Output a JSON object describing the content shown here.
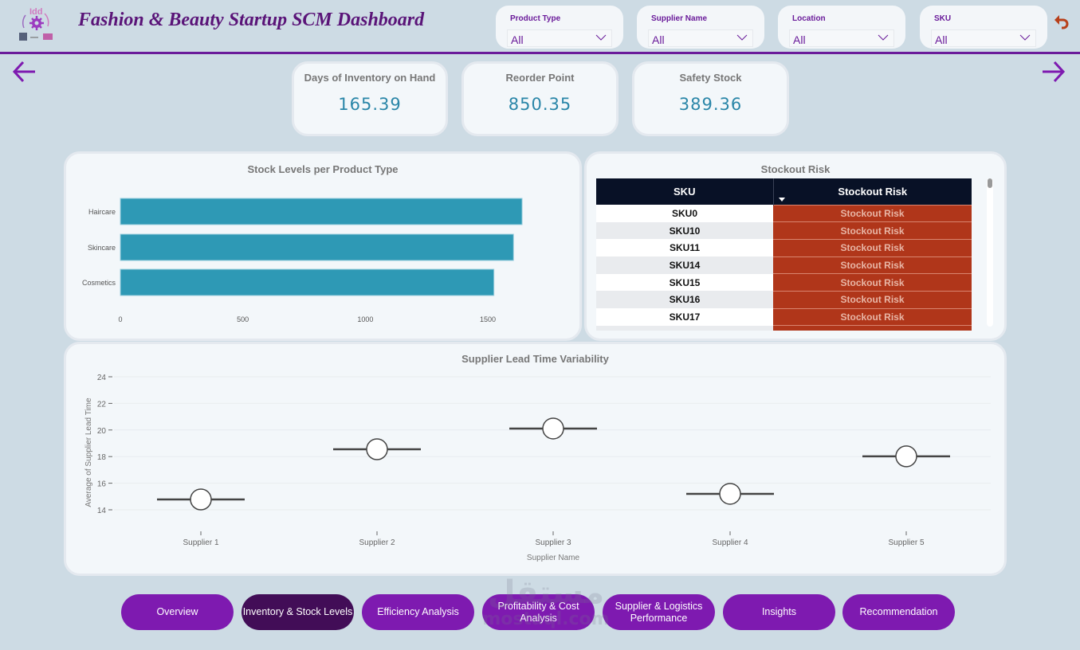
{
  "header": {
    "title": "Fashion & Beauty Startup SCM Dashboard",
    "logo_icon": "supply-chain-logo-icon",
    "reset_icon": "undo-icon",
    "back_icon": "arrow-left-icon",
    "forward_icon": "arrow-right-icon"
  },
  "filters": [
    {
      "label": "Product Type",
      "value": "All"
    },
    {
      "label": "Supplier Name",
      "value": "All"
    },
    {
      "label": "Location",
      "value": "All"
    },
    {
      "label": "SKU",
      "value": "All"
    }
  ],
  "kpis": [
    {
      "title": "Days of Inventory on Hand",
      "value": "165.39"
    },
    {
      "title": "Reorder Point",
      "value": "850.35"
    },
    {
      "title": "Safety Stock",
      "value": "389.36"
    }
  ],
  "stockout": {
    "title": "Stockout Risk",
    "columns": [
      "SKU",
      "Stockout Risk"
    ],
    "rows": [
      {
        "sku": "SKU0",
        "risk": "Stockout Risk"
      },
      {
        "sku": "SKU10",
        "risk": "Stockout Risk"
      },
      {
        "sku": "SKU11",
        "risk": "Stockout Risk"
      },
      {
        "sku": "SKU14",
        "risk": "Stockout Risk"
      },
      {
        "sku": "SKU15",
        "risk": "Stockout Risk"
      },
      {
        "sku": "SKU16",
        "risk": "Stockout Risk"
      },
      {
        "sku": "SKU17",
        "risk": "Stockout Risk"
      }
    ],
    "risk_color": "#b0361a"
  },
  "nav": {
    "buttons": [
      "Overview",
      "Inventory & Stock Levels",
      "Efficiency Analysis",
      "Profitability & Cost Analysis",
      "Supplier & Logistics Performance",
      "Insights",
      "Recommendation"
    ],
    "active_index": 1
  },
  "watermark": {
    "arabic": "مستقل",
    "latin": "mostaql.com"
  },
  "chart_data": [
    {
      "type": "bar",
      "orientation": "horizontal",
      "title": "Stock Levels per Product Type",
      "categories": [
        "Haircare",
        "Skincare",
        "Cosmetics"
      ],
      "values": [
        1640,
        1605,
        1525
      ],
      "xticks": [
        0,
        500,
        1000,
        1500
      ],
      "xlim": [
        0,
        1800
      ],
      "xlabel": "",
      "ylabel": "",
      "color": "#2e99b5",
      "grid": false
    },
    {
      "type": "scatter",
      "title": "Supplier Lead Time Variability",
      "categories": [
        "Supplier 1",
        "Supplier 2",
        "Supplier 3",
        "Supplier 4",
        "Supplier 5"
      ],
      "values": [
        14.78,
        18.55,
        20.11,
        15.2,
        18.02
      ],
      "yticks": [
        14,
        16,
        18,
        20,
        22,
        24
      ],
      "ylim": [
        13,
        24
      ],
      "xlabel": "Supplier Name",
      "ylabel": "Average of Supplier Lead Time",
      "grid": true,
      "marker": "circle-with-horizontal-line"
    }
  ]
}
